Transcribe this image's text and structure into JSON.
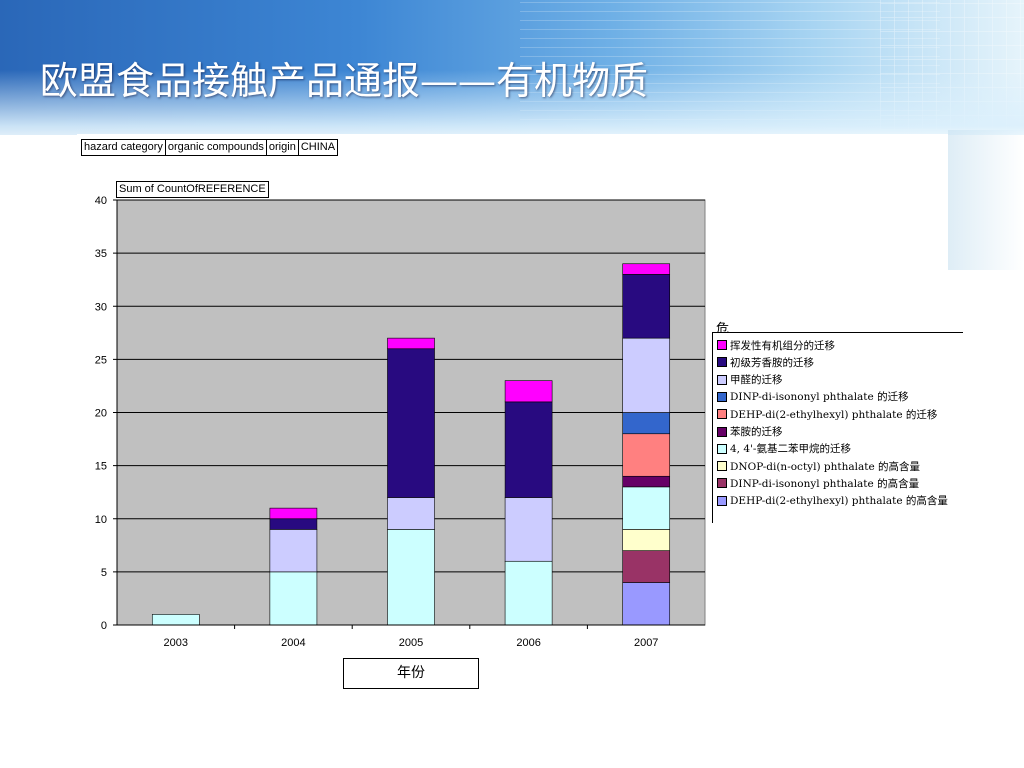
{
  "slide": {
    "title": "欧盟食品接触产品通报——有机物质"
  },
  "filters": {
    "field_label": "hazard category",
    "field_value": "organic compounds",
    "origin_label": "origin",
    "origin_value": "CHINA"
  },
  "chart_data": {
    "type": "bar",
    "stacked": true,
    "data_field": "Sum of CountOfREFERENCE",
    "xlabel": "年份",
    "categories": [
      "2003",
      "2004",
      "2005",
      "2006",
      "2007"
    ],
    "ylim": [
      0,
      40
    ],
    "yticks": [
      0,
      5,
      10,
      15,
      20,
      25,
      30,
      35,
      40
    ],
    "grid": true,
    "legend_title": "危害",
    "legend_position": "right",
    "series": [
      {
        "name": "DEHP-di(2-ethylhexyl) phthalate 的高含量",
        "color": "#9999ff",
        "values": [
          0,
          0,
          0,
          0,
          4
        ]
      },
      {
        "name": "DINP-di-isononyl phthalate 的高含量",
        "color": "#993366",
        "values": [
          0,
          0,
          0,
          0,
          3
        ]
      },
      {
        "name": "DNOP-di(n-octyl) phthalate 的高含量",
        "color": "#ffffcc",
        "values": [
          0,
          0,
          0,
          0,
          2
        ]
      },
      {
        "name": "4, 4'-氨基二苯甲烷的迁移",
        "color": "#ccffff",
        "values": [
          1,
          5,
          9,
          6,
          4
        ]
      },
      {
        "name": "苯胺的迁移",
        "color": "#660066",
        "values": [
          0,
          0,
          0,
          0,
          1
        ]
      },
      {
        "name": "DEHP-di(2-ethylhexyl) phthalate 的迁移",
        "color": "#ff8080",
        "values": [
          0,
          0,
          0,
          0,
          4
        ]
      },
      {
        "name": "DINP-di-isononyl phthalate 的迁移",
        "color": "#3366cc",
        "values": [
          0,
          0,
          0,
          0,
          2
        ]
      },
      {
        "name": "甲醛的迁移",
        "color": "#ccccff",
        "values": [
          0,
          4,
          3,
          6,
          7
        ]
      },
      {
        "name": "初级芳香胺的迁移",
        "color": "#280a80",
        "values": [
          0,
          1,
          14,
          9,
          6
        ]
      },
      {
        "name": "挥发性有机组分的迁移",
        "color": "#ff00ff",
        "values": [
          0,
          1,
          1,
          2,
          1
        ]
      }
    ],
    "colors": {
      "plot_background": "#c0c0c0",
      "gridline": "#000000"
    }
  }
}
